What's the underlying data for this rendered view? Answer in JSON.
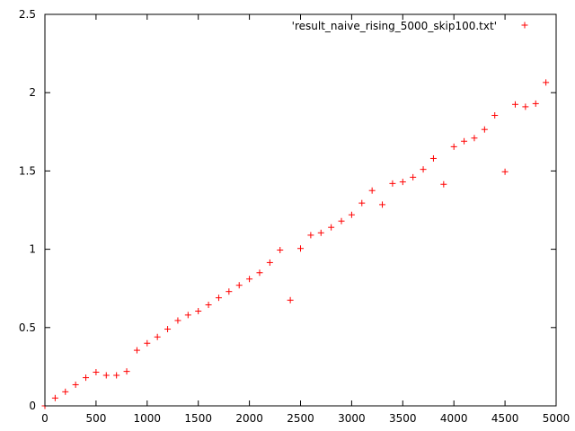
{
  "chart_data": {
    "type": "scatter",
    "title": "",
    "xlabel": "",
    "ylabel": "",
    "xlim": [
      0,
      5000
    ],
    "ylim": [
      0,
      2.5
    ],
    "x_ticks": [
      "0",
      "500",
      "1000",
      "1500",
      "2000",
      "2500",
      "3000",
      "3500",
      "4000",
      "4500",
      "5000"
    ],
    "y_ticks": [
      "0",
      "0.5",
      "1",
      "1.5",
      "2",
      "2.5"
    ],
    "x_tick_values": [
      0,
      500,
      1000,
      1500,
      2000,
      2500,
      3000,
      3500,
      4000,
      4500,
      5000
    ],
    "y_tick_values": [
      0,
      0.5,
      1,
      1.5,
      2,
      2.5
    ],
    "grid": false,
    "legend_position": "top-right",
    "series": [
      {
        "name": "'result_naive_rising_5000_skip100.txt'",
        "color": "#ff0000",
        "marker": "plus",
        "x": [
          0,
          100,
          200,
          300,
          400,
          500,
          600,
          700,
          800,
          900,
          1000,
          1100,
          1200,
          1300,
          1400,
          1500,
          1600,
          1700,
          1800,
          1900,
          2000,
          2100,
          2200,
          2300,
          2400,
          2500,
          2600,
          2700,
          2800,
          2900,
          3000,
          3100,
          3200,
          3300,
          3400,
          3500,
          3600,
          3700,
          3800,
          3900,
          4000,
          4100,
          4200,
          4300,
          4400,
          4500,
          4600,
          4700,
          4800,
          4900
        ],
        "y": [
          0.0,
          0.05,
          0.09,
          0.135,
          0.18,
          0.215,
          0.195,
          0.195,
          0.22,
          0.355,
          0.4,
          0.44,
          0.49,
          0.545,
          0.58,
          0.605,
          0.645,
          0.69,
          0.73,
          0.77,
          0.81,
          0.85,
          0.915,
          0.995,
          0.675,
          1.005,
          1.09,
          1.105,
          1.14,
          1.18,
          1.22,
          1.295,
          1.375,
          1.285,
          1.42,
          1.43,
          1.46,
          1.51,
          1.58,
          1.415,
          1.655,
          1.69,
          1.71,
          1.765,
          1.855,
          1.495,
          1.925,
          1.91,
          1.93,
          2.065
        ]
      }
    ]
  }
}
